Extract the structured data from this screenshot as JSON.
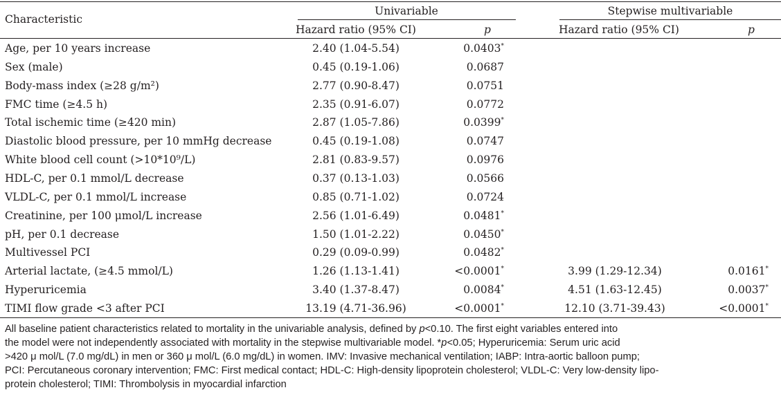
{
  "header": {
    "characteristic": "Characteristic",
    "univariable": "Univariable",
    "stepwise": "Stepwise multivariable",
    "hr_label": "Hazard ratio (95% CI)",
    "p_label": "p"
  },
  "rows": [
    {
      "label": "Age, per 10 years increase",
      "u_hr": "2.40 (1.04-5.54)",
      "u_p": "0.0403",
      "u_sig": "*",
      "m_hr": "",
      "m_p": "",
      "m_sig": ""
    },
    {
      "label": "Sex (male)",
      "u_hr": "0.45 (0.19-1.06)",
      "u_p": "0.0687",
      "u_sig": "",
      "m_hr": "",
      "m_p": "",
      "m_sig": ""
    },
    {
      "label": "Body-mass index (≥28 g/m²)",
      "u_hr": "2.77 (0.90-8.47)",
      "u_p": "0.0751",
      "u_sig": "",
      "m_hr": "",
      "m_p": "",
      "m_sig": ""
    },
    {
      "label": "FMC time (≥4.5 h)",
      "u_hr": "2.35 (0.91-6.07)",
      "u_p": "0.0772",
      "u_sig": "",
      "m_hr": "",
      "m_p": "",
      "m_sig": ""
    },
    {
      "label": "Total ischemic time (≥420 min)",
      "u_hr": "2.87 (1.05-7.86)",
      "u_p": "0.0399",
      "u_sig": "*",
      "m_hr": "",
      "m_p": "",
      "m_sig": ""
    },
    {
      "label": "Diastolic blood pressure, per 10 mmHg decrease",
      "u_hr": "0.45 (0.19-1.08)",
      "u_p": "0.0747",
      "u_sig": "",
      "m_hr": "",
      "m_p": "",
      "m_sig": ""
    },
    {
      "label": "White blood cell count (>10*10⁹/L)",
      "u_hr": "2.81 (0.83-9.57)",
      "u_p": "0.0976",
      "u_sig": "",
      "m_hr": "",
      "m_p": "",
      "m_sig": ""
    },
    {
      "label": "HDL-C, per 0.1 mmol/L decrease",
      "u_hr": "0.37 (0.13-1.03)",
      "u_p": "0.0566",
      "u_sig": "",
      "m_hr": "",
      "m_p": "",
      "m_sig": ""
    },
    {
      "label": "VLDL-C, per 0.1 mmol/L increase",
      "u_hr": "0.85 (0.71-1.02)",
      "u_p": "0.0724",
      "u_sig": "",
      "m_hr": "",
      "m_p": "",
      "m_sig": ""
    },
    {
      "label": "Creatinine, per 100 μmol/L increase",
      "u_hr": "2.56 (1.01-6.49)",
      "u_p": "0.0481",
      "u_sig": "*",
      "m_hr": "",
      "m_p": "",
      "m_sig": ""
    },
    {
      "label": "pH, per 0.1 decrease",
      "u_hr": "1.50 (1.01-2.22)",
      "u_p": "0.0450",
      "u_sig": "*",
      "m_hr": "",
      "m_p": "",
      "m_sig": ""
    },
    {
      "label": "Multivessel PCI",
      "u_hr": "0.29 (0.09-0.99)",
      "u_p": "0.0482",
      "u_sig": "*",
      "m_hr": "",
      "m_p": "",
      "m_sig": ""
    },
    {
      "label": "Arterial lactate, (≥4.5 mmol/L)",
      "u_hr": "1.26 (1.13-1.41)",
      "u_p": "<0.0001",
      "u_sig": "*",
      "m_hr": "3.99 (1.29-12.34)",
      "m_p": "0.0161",
      "m_sig": "*"
    },
    {
      "label": "Hyperuricemia",
      "u_hr": "3.40 (1.37-8.47)",
      "u_p": "0.0084",
      "u_sig": "*",
      "m_hr": "4.51 (1.63-12.45)",
      "m_p": "0.0037",
      "m_sig": "*"
    },
    {
      "label": "TIMI flow grade <3 after PCI",
      "u_hr": "13.19 (4.71-36.96)",
      "u_p": "<0.0001",
      "u_sig": "*",
      "m_hr": "12.10 (3.71-39.43)",
      "m_p": "<0.0001",
      "m_sig": "*"
    }
  ],
  "footnote": {
    "l1_a": "All baseline patient characteristics related to mortality in the univariable analysis, defined by ",
    "l1_p": "p",
    "l1_b": "<0.10. The first eight variables entered into",
    "l2": "the model were not independently associated with mortality in the stepwise multivariable model. ",
    "l2_star": "*",
    "l2_p": "p",
    "l2_b": "<0.05; Hyperuricemia: Serum uric acid",
    "l3": ">420 μ mol/L (7.0 mg/dL) in men or 360 μ mol/L (6.0 mg/dL) in women. IMV: Invasive mechanical ventilation; IABP: Intra-aortic balloon pump;",
    "l4": "PCI: Percutaneous coronary intervention; FMC: First medical contact; HDL-C: High-density lipoprotein cholesterol; VLDL-C: Very low-density lipo-",
    "l5": "protein cholesterol; TIMI: Thrombolysis in myocardial infarction"
  }
}
